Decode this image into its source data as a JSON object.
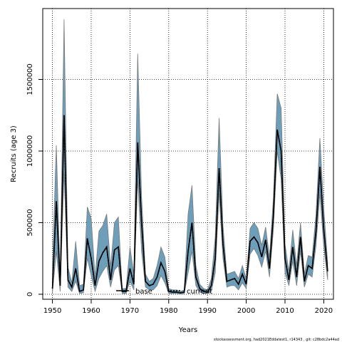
{
  "chart_data": {
    "type": "area",
    "xlabel": "Years",
    "ylabel": "Recruits (age 3)",
    "xlim": [
      1947.5,
      2022.5
    ],
    "ylim": [
      -35000,
      1995000
    ],
    "x_ticks": [
      1950,
      1960,
      1970,
      1980,
      1990,
      2000,
      2010,
      2020
    ],
    "y_ticks": [
      0,
      500000,
      1000000,
      1500000
    ],
    "y_tick_labels": [
      "0",
      "500000",
      "1000000",
      "1500000"
    ],
    "grid": true,
    "legend_position": "bottom-center",
    "legend": [
      {
        "label": "base",
        "style": "solid",
        "color": "#000000"
      },
      {
        "label": "current",
        "style": "dotted",
        "color": "#000000"
      }
    ],
    "band_fill_color": "#6e9fba",
    "band_edge_color": "#7a7a7a",
    "line_color": "#000000",
    "years": [
      1950,
      1951,
      1952,
      1953,
      1954,
      1955,
      1956,
      1957,
      1958,
      1959,
      1960,
      1961,
      1962,
      1963,
      1964,
      1965,
      1966,
      1967,
      1968,
      1969,
      1970,
      1971,
      1972,
      1973,
      1974,
      1975,
      1976,
      1977,
      1978,
      1979,
      1980,
      1981,
      1982,
      1983,
      1984,
      1985,
      1986,
      1987,
      1988,
      1989,
      1990,
      1991,
      1992,
      1993,
      1994,
      1995,
      1996,
      1997,
      1998,
      1999,
      2000,
      2001,
      2002,
      2003,
      2004,
      2005,
      2006,
      2007,
      2008,
      2009,
      2010,
      2011,
      2012,
      2013,
      2014,
      2015,
      2016,
      2017,
      2018,
      2019,
      2020,
      2021
    ],
    "series": [
      {
        "name": "base",
        "values": [
          40000,
          650000,
          60000,
          1250000,
          100000,
          50000,
          180000,
          20000,
          30000,
          390000,
          250000,
          60000,
          230000,
          290000,
          330000,
          100000,
          310000,
          330000,
          20000,
          20000,
          180000,
          70000,
          1060000,
          500000,
          90000,
          60000,
          70000,
          120000,
          220000,
          160000,
          20000,
          15000,
          15000,
          10000,
          15000,
          300000,
          500000,
          120000,
          40000,
          20000,
          15000,
          60000,
          250000,
          880000,
          350000,
          90000,
          100000,
          110000,
          70000,
          140000,
          70000,
          370000,
          400000,
          360000,
          260000,
          380000,
          180000,
          550000,
          1150000,
          1000000,
          250000,
          100000,
          330000,
          120000,
          400000,
          90000,
          200000,
          180000,
          440000,
          890000,
          450000,
          160000
        ]
      },
      {
        "name": "current",
        "values": [
          40000,
          650000,
          60000,
          1250000,
          100000,
          50000,
          180000,
          20000,
          30000,
          390000,
          250000,
          60000,
          230000,
          290000,
          330000,
          100000,
          310000,
          330000,
          20000,
          20000,
          180000,
          70000,
          1060000,
          500000,
          90000,
          60000,
          70000,
          120000,
          220000,
          160000,
          20000,
          15000,
          15000,
          10000,
          15000,
          300000,
          500000,
          120000,
          40000,
          20000,
          15000,
          60000,
          250000,
          880000,
          350000,
          90000,
          100000,
          110000,
          70000,
          140000,
          70000,
          370000,
          400000,
          360000,
          260000,
          380000,
          180000,
          550000,
          1150000,
          1000000,
          250000,
          100000,
          330000,
          120000,
          400000,
          90000,
          200000,
          180000,
          440000,
          890000,
          450000,
          160000
        ]
      }
    ],
    "band_lower": [
      10000,
      300000,
      20000,
      850000,
      50000,
      20000,
      90000,
      5000,
      10000,
      250000,
      130000,
      20000,
      110000,
      160000,
      200000,
      50000,
      170000,
      200000,
      5000,
      5000,
      90000,
      30000,
      800000,
      300000,
      50000,
      30000,
      30000,
      60000,
      130000,
      80000,
      5000,
      5000,
      5000,
      2000,
      5000,
      150000,
      300000,
      60000,
      15000,
      5000,
      5000,
      20000,
      150000,
      700000,
      250000,
      50000,
      60000,
      60000,
      30000,
      80000,
      40000,
      280000,
      320000,
      270000,
      190000,
      300000,
      120000,
      450000,
      1000000,
      800000,
      150000,
      60000,
      230000,
      60000,
      300000,
      50000,
      140000,
      120000,
      340000,
      700000,
      330000,
      100000
    ],
    "band_upper": [
      200000,
      1040000,
      110000,
      1920000,
      190000,
      80000,
      370000,
      60000,
      70000,
      610000,
      530000,
      120000,
      440000,
      480000,
      560000,
      190000,
      500000,
      540000,
      40000,
      40000,
      330000,
      140000,
      1680000,
      680000,
      140000,
      90000,
      110000,
      200000,
      330000,
      260000,
      40000,
      30000,
      30000,
      20000,
      30000,
      560000,
      760000,
      200000,
      70000,
      40000,
      30000,
      110000,
      400000,
      1230000,
      480000,
      140000,
      150000,
      160000,
      110000,
      200000,
      110000,
      460000,
      500000,
      460000,
      340000,
      470000,
      260000,
      670000,
      1400000,
      1300000,
      350000,
      160000,
      450000,
      200000,
      500000,
      140000,
      270000,
      260000,
      560000,
      1090000,
      600000,
      220000
    ]
  },
  "footer": {
    "text": "stockassessment.org, had2021Eddatest1, r14343 , git: c28bdc2a44ad"
  }
}
